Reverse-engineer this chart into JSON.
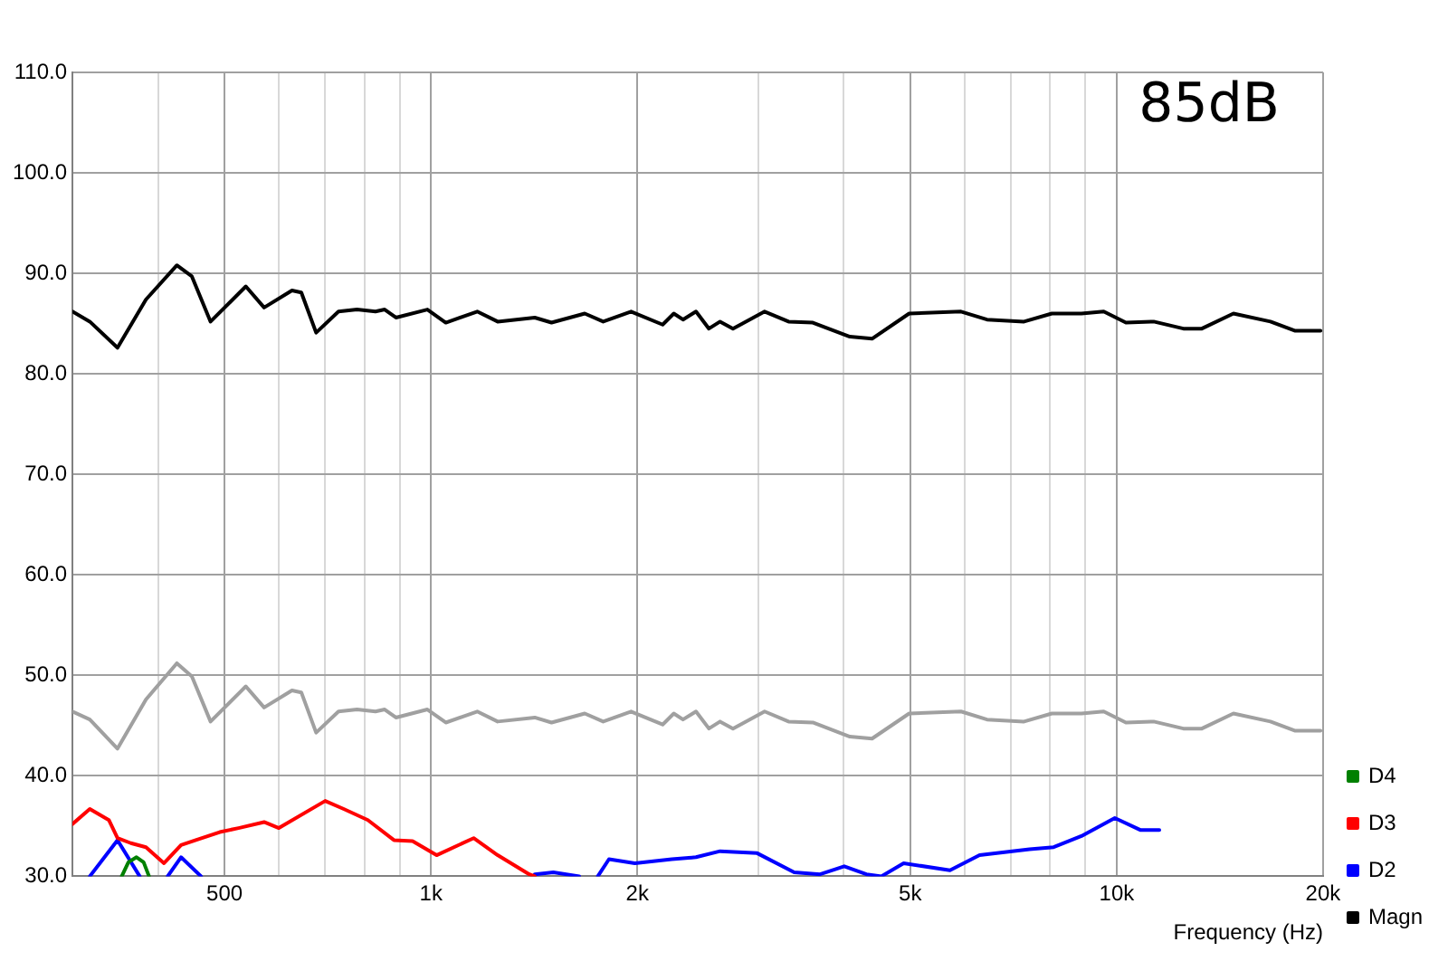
{
  "chart_data": {
    "type": "line",
    "xlabel": "Frequency (Hz)",
    "annotations": [
      "85dB"
    ],
    "log": "x",
    "grid": true,
    "legend": "bottom right",
    "marker": "none",
    "line_style": "solid",
    "xlim": [
      300,
      20000
    ],
    "ylim": [
      30,
      110
    ],
    "xticks": [
      {
        "value": 400,
        "label": null
      },
      {
        "value": 500,
        "label": "500"
      },
      {
        "value": 600,
        "label": null
      },
      {
        "value": 700,
        "label": null
      },
      {
        "value": 800,
        "label": null
      },
      {
        "value": 900,
        "label": null
      },
      {
        "value": 1000,
        "label": "1k"
      },
      {
        "value": 2000,
        "label": "2k"
      },
      {
        "value": 3000,
        "label": null
      },
      {
        "value": 4000,
        "label": null
      },
      {
        "value": 5000,
        "label": "5k"
      },
      {
        "value": 6000,
        "label": null
      },
      {
        "value": 7000,
        "label": null
      },
      {
        "value": 8000,
        "label": null
      },
      {
        "value": 9000,
        "label": null
      },
      {
        "value": 10000,
        "label": "10k"
      },
      {
        "value": 20000,
        "label": "20k"
      }
    ],
    "yticks": [
      {
        "value": 30,
        "label": "30.0"
      },
      {
        "value": 40,
        "label": "40.0"
      },
      {
        "value": 50,
        "label": "50.0"
      },
      {
        "value": 60,
        "label": "60.0"
      },
      {
        "value": 70,
        "label": "70.0"
      },
      {
        "value": 80,
        "label": "80.0"
      },
      {
        "value": 90,
        "label": "90.0"
      },
      {
        "value": 100,
        "label": "100.0"
      },
      {
        "value": 110,
        "label": "110.0"
      }
    ],
    "x": [
      300,
      318,
      349,
      384,
      426,
      448,
      477,
      537,
      571,
      627,
      647,
      680,
      733,
      780,
      830,
      856,
      889,
      988,
      1051,
      1168,
      1251,
      1417,
      1499,
      1676,
      1783,
      1958,
      2177,
      2260,
      2331,
      2435,
      2543,
      2640,
      2757,
      3066,
      3323,
      3605,
      4082,
      4398,
      4981,
      5929,
      6470,
      7327,
      8043,
      8884,
      9575,
      10316,
      11325,
      12510,
      13312,
      14800,
      16760,
      18180,
      19830
    ],
    "series": [
      {
        "name": "D4",
        "color": "#008000",
        "x": [
          354,
          362,
          372,
          381,
          388
        ],
        "values": [
          30,
          31.4,
          31.9,
          31.4,
          30
        ]
      },
      {
        "name": "D3",
        "color": "#ff0000",
        "x": [
          300,
          318,
          339,
          349,
          365,
          384,
          408,
          432,
          454,
          492,
          524,
          571,
          600,
          701,
          746,
          809,
          883,
          940,
          1019,
          1154,
          1251,
          1391,
          1417
        ],
        "values": [
          35.2,
          36.7,
          35.6,
          33.8,
          33.3,
          32.9,
          31.3,
          33.1,
          33.6,
          34.4,
          34.8,
          35.4,
          34.8,
          37.5,
          36.7,
          35.6,
          33.6,
          33.5,
          32.1,
          33.8,
          32.1,
          30.2,
          30
        ]
      },
      {
        "name": "D2",
        "color": "#0000ff",
        "x": [
          318,
          349,
          376,
          395,
          413,
          432,
          462,
          900,
          1417,
          1508,
          1645,
          1700,
          1751,
          1818,
          1983,
          2245,
          2435,
          2640,
          2990,
          3386,
          3694,
          4006,
          4316,
          4538,
          4890,
          5713,
          6310,
          7464,
          8093,
          8884,
          9938,
          10840,
          11540
        ],
        "values": [
          30,
          33.6,
          30,
          null,
          30,
          31.9,
          30,
          null,
          30.2,
          30.4,
          30,
          null,
          30,
          31.7,
          31.3,
          31.7,
          31.9,
          32.5,
          32.3,
          30.4,
          30.2,
          31,
          30.2,
          30,
          31.3,
          30.6,
          32.1,
          32.7,
          32.9,
          34,
          35.8,
          34.6,
          34.6
        ]
      },
      {
        "name": "Magn",
        "color": "#000000",
        "values": [
          86.2,
          85.2,
          82.6,
          87.4,
          90.8,
          89.7,
          85.2,
          88.7,
          86.6,
          88.3,
          88.1,
          84.1,
          86.2,
          86.4,
          86.2,
          86.4,
          85.6,
          86.4,
          85.1,
          86.2,
          85.2,
          85.6,
          85.1,
          86,
          85.2,
          86.2,
          84.9,
          86,
          85.4,
          86.2,
          84.5,
          85.2,
          84.5,
          86.2,
          85.2,
          85.1,
          83.7,
          83.5,
          86,
          86.2,
          85.4,
          85.2,
          86,
          86,
          86.2,
          85.1,
          85.2,
          84.5,
          84.5,
          86,
          85.2,
          84.3,
          84.3
        ]
      },
      {
        "color": "#a0a0a0",
        "values": [
          46.4,
          45.6,
          42.7,
          47.6,
          51.2,
          49.9,
          45.4,
          48.9,
          46.8,
          48.5,
          48.3,
          44.3,
          46.4,
          46.6,
          46.4,
          46.6,
          45.8,
          46.6,
          45.3,
          46.4,
          45.4,
          45.8,
          45.3,
          46.2,
          45.4,
          46.4,
          45.1,
          46.2,
          45.6,
          46.4,
          44.7,
          45.4,
          44.7,
          46.4,
          45.4,
          45.3,
          43.9,
          43.7,
          46.2,
          46.4,
          45.6,
          45.4,
          46.2,
          46.2,
          46.4,
          45.3,
          45.4,
          44.7,
          44.7,
          46.2,
          45.4,
          44.5,
          44.5
        ]
      }
    ]
  }
}
